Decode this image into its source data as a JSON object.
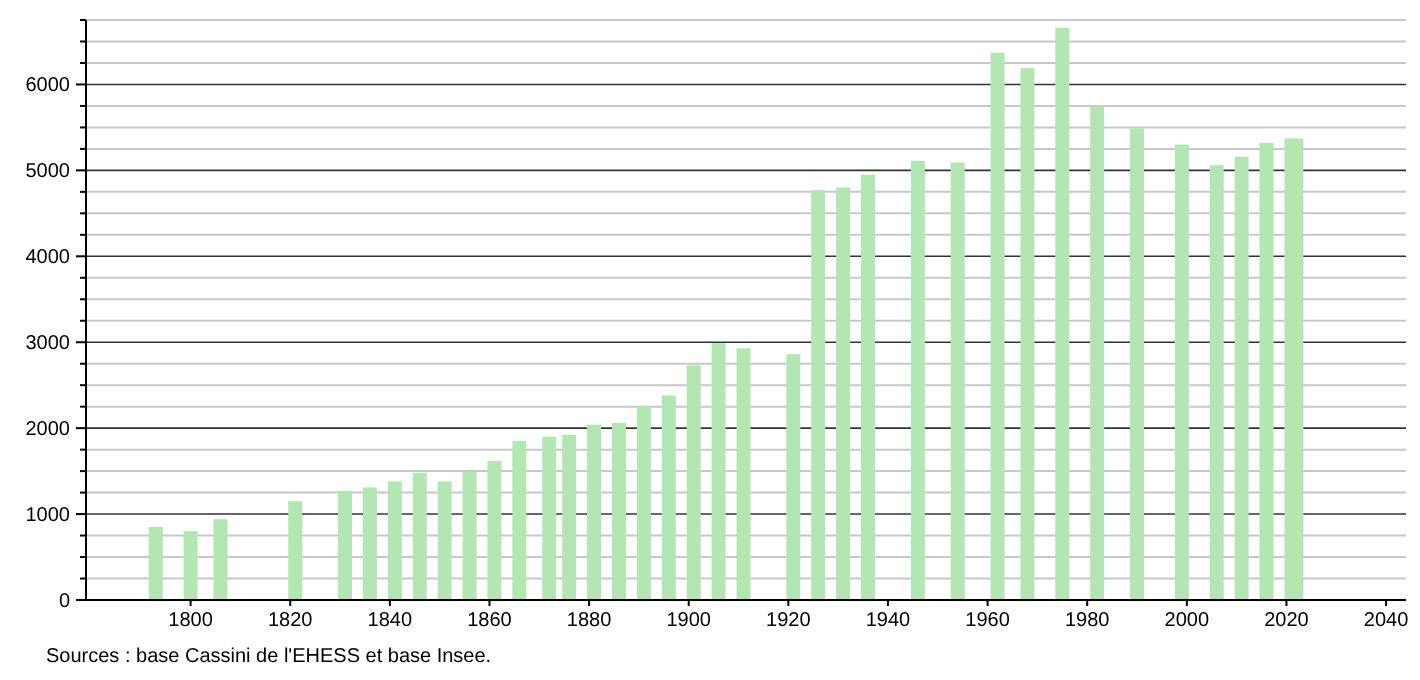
{
  "chart_data": {
    "type": "bar",
    "x": [
      1793,
      1800,
      1806,
      1821,
      1831,
      1836,
      1841,
      1846,
      1851,
      1856,
      1861,
      1866,
      1872,
      1876,
      1881,
      1886,
      1891,
      1896,
      1901,
      1906,
      1911,
      1921,
      1926,
      1931,
      1936,
      1946,
      1954,
      1962,
      1968,
      1975,
      1982,
      1990,
      1999,
      2006,
      2011,
      2016,
      2021,
      2022
    ],
    "values": [
      850,
      800,
      940,
      1150,
      1270,
      1310,
      1380,
      1480,
      1380,
      1490,
      1620,
      1850,
      1900,
      1920,
      2040,
      2060,
      2250,
      2380,
      2730,
      2990,
      2930,
      2860,
      4770,
      4800,
      4950,
      5110,
      5090,
      6370,
      6190,
      6660,
      5740,
      5490,
      5300,
      5060,
      5160,
      5320,
      5370,
      5370
    ],
    "color": "#b3e6b3",
    "xlim": [
      1779,
      2044
    ],
    "xticks": [
      1800,
      1820,
      1840,
      1860,
      1880,
      1900,
      1920,
      1940,
      1960,
      1980,
      2000,
      2020,
      2040
    ],
    "ylim": [
      0,
      6750
    ],
    "yticks": [
      0,
      {
        "value": 250,
        "label": null
      },
      {
        "value": 500,
        "label": null
      },
      {
        "value": 750,
        "label": null
      },
      1000,
      {
        "value": 1250,
        "label": null
      },
      {
        "value": 1500,
        "label": null
      },
      {
        "value": 1750,
        "label": null
      },
      2000,
      {
        "value": 2250,
        "label": null
      },
      {
        "value": 2500,
        "label": null
      },
      {
        "value": 2750,
        "label": null
      },
      3000,
      {
        "value": 3250,
        "label": null
      },
      {
        "value": 3500,
        "label": null
      },
      {
        "value": 3750,
        "label": null
      },
      4000,
      {
        "value": 4250,
        "label": null
      },
      {
        "value": 4500,
        "label": null
      },
      {
        "value": 4750,
        "label": null
      },
      5000,
      {
        "value": 5250,
        "label": null
      },
      {
        "value": 5500,
        "label": null
      },
      {
        "value": 5750,
        "label": null
      },
      6000,
      {
        "value": 6250,
        "label": null
      },
      {
        "value": 6500,
        "label": null
      },
      {
        "value": 6750,
        "label": null
      }
    ],
    "grid": "y",
    "annotations": [
      "Sources : base Cassini de l'EHESS et base Insee."
    ]
  }
}
